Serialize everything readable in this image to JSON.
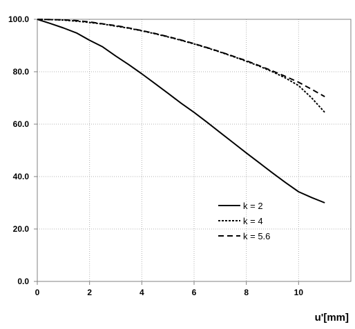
{
  "chart_data": {
    "type": "line",
    "title": "",
    "xlabel": "u'[mm]",
    "ylabel": "",
    "xlim": [
      0,
      12
    ],
    "ylim": [
      0,
      100
    ],
    "x_ticks": [
      "0",
      "2",
      "4",
      "6",
      "8",
      "10"
    ],
    "y_ticks": [
      "0.0",
      "20.0",
      "40.0",
      "60.0",
      "80.0",
      "100.0"
    ],
    "grid": true,
    "legend_position": "lower-right",
    "series": [
      {
        "name": "k = 2",
        "line_style": "solid",
        "color": "#000000",
        "x": [
          0,
          0.5,
          1,
          1.5,
          2,
          2.5,
          3,
          3.5,
          4,
          4.5,
          5,
          5.5,
          6,
          6.5,
          7,
          7.5,
          8,
          8.5,
          9,
          9.5,
          10,
          10.5,
          11
        ],
        "y": [
          100.0,
          98.4,
          96.7,
          94.8,
          92.0,
          89.5,
          86.0,
          82.7,
          79.2,
          75.5,
          71.8,
          68.0,
          64.5,
          60.7,
          56.8,
          52.9,
          49.0,
          45.2,
          41.4,
          37.7,
          34.2,
          32.0,
          30.0
        ]
      },
      {
        "name": "k = 4",
        "line_style": "dotted",
        "color": "#000000",
        "x": [
          0,
          0.5,
          1,
          1.5,
          2,
          2.5,
          3,
          3.5,
          4,
          4.5,
          5,
          5.5,
          6,
          6.5,
          7,
          7.5,
          8,
          8.5,
          9,
          9.5,
          10,
          10.5,
          11
        ],
        "y": [
          100.0,
          99.9,
          99.7,
          99.3,
          98.8,
          98.2,
          97.4,
          96.6,
          95.6,
          94.5,
          93.3,
          92.0,
          90.6,
          89.1,
          87.5,
          85.8,
          84.0,
          82.1,
          80.0,
          77.6,
          74.7,
          70.0,
          64.5
        ]
      },
      {
        "name": "k = 5.6",
        "line_style": "dashed",
        "color": "#000000",
        "x": [
          0,
          0.5,
          1,
          1.5,
          2,
          2.5,
          3,
          3.5,
          4,
          4.5,
          5,
          5.5,
          6,
          6.5,
          7,
          7.5,
          8,
          8.5,
          9,
          9.5,
          10,
          10.5,
          11
        ],
        "y": [
          100.0,
          99.9,
          99.8,
          99.5,
          99.0,
          98.3,
          97.6,
          96.7,
          95.7,
          94.6,
          93.4,
          92.1,
          90.7,
          89.2,
          87.6,
          85.9,
          84.2,
          82.3,
          80.3,
          78.2,
          76.0,
          73.3,
          70.5
        ]
      }
    ]
  }
}
